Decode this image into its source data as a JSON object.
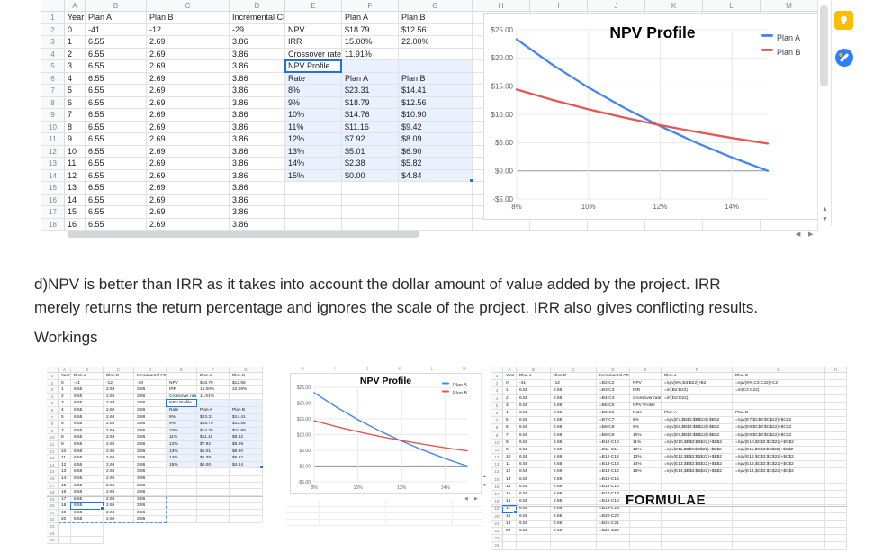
{
  "colors": {
    "plan_a": "#4285f4",
    "plan_b": "#e65550",
    "selection_fill": "#e8f0fd",
    "selection_border": "#1a73e8",
    "grid_line": "#e2e2e2",
    "header_bg": "#f8f9fa",
    "keep_icon_bg": "#fbbc04",
    "tasks_icon_bg": "#2d7ff9"
  },
  "top_sheet": {
    "col_letters": [
      "A",
      "B",
      "C",
      "D",
      "E",
      "F",
      "G",
      "H",
      "I",
      "J",
      "K",
      "L",
      "M"
    ],
    "selection_range": "E5:G14",
    "active_cell": "E5",
    "rows": [
      [
        "Year",
        "Plan A",
        "Plan B",
        "Incremental CF",
        "",
        "Plan A",
        "Plan B"
      ],
      [
        "0",
        "-41",
        "-12",
        "-29",
        "NPV",
        "$18.79",
        "$12.56"
      ],
      [
        "1",
        "6.55",
        "2.69",
        "3.86",
        "IRR",
        "15.00%",
        "22.00%"
      ],
      [
        "2",
        "6.55",
        "2.69",
        "3.86",
        "Crossover rate",
        "11.91%",
        ""
      ],
      [
        "3",
        "6.55",
        "2.69",
        "3.86",
        "NPV Profile",
        "",
        ""
      ],
      [
        "4",
        "6.55",
        "2.69",
        "3.86",
        "Rate",
        "Plan A",
        "Plan B"
      ],
      [
        "5",
        "6.55",
        "2.69",
        "3.86",
        "8%",
        "$23.31",
        "$14.41"
      ],
      [
        "6",
        "6.55",
        "2.69",
        "3.86",
        "9%",
        "$18.79",
        "$12.56"
      ],
      [
        "7",
        "6.55",
        "2.69",
        "3.86",
        "10%",
        "$14.76",
        "$10.90"
      ],
      [
        "8",
        "6.55",
        "2.69",
        "3.86",
        "11%",
        "$11.16",
        "$9.42"
      ],
      [
        "9",
        "6.55",
        "2.69",
        "3.86",
        "12%",
        "$7.92",
        "$8.09"
      ],
      [
        "10",
        "6.55",
        "2.69",
        "3.86",
        "13%",
        "$5.01",
        "$6.90"
      ],
      [
        "11",
        "6.55",
        "2.69",
        "3.86",
        "14%",
        "$2.38",
        "$5.82"
      ],
      [
        "12",
        "6.55",
        "2.69",
        "3.86",
        "15%",
        "$0.00",
        "$4.84"
      ],
      [
        "13",
        "6.55",
        "2.69",
        "3.86",
        "",
        "",
        ""
      ],
      [
        "14",
        "6.55",
        "2.69",
        "3.86",
        "",
        "",
        ""
      ],
      [
        "15",
        "6.55",
        "2.69",
        "3.86",
        "",
        "",
        ""
      ],
      [
        "16",
        "6.55",
        "2.69",
        "3.86",
        "",
        "",
        ""
      ]
    ]
  },
  "chart_data": {
    "type": "line",
    "title": "NPV Profile",
    "x": [
      8,
      9,
      10,
      11,
      12,
      13,
      14,
      15
    ],
    "xlim": [
      8,
      15
    ],
    "ylim": [
      -5,
      25
    ],
    "x_ticks": [
      8,
      10,
      12,
      14
    ],
    "x_tick_labels": [
      "8%",
      "10%",
      "12%",
      "14%"
    ],
    "y_ticks": [
      25,
      20,
      15,
      10,
      5,
      0,
      -5
    ],
    "y_tick_labels": [
      "$25.00",
      "$20.00",
      "$15.00",
      "$10.00",
      "$5.00",
      "$0.00",
      "-$5.00"
    ],
    "grid": true,
    "legend_position": "top-right",
    "series": [
      {
        "name": "Plan A",
        "color": "#4285f4",
        "values": [
          23.31,
          18.79,
          14.76,
          11.16,
          7.92,
          5.01,
          2.38,
          0.0
        ]
      },
      {
        "name": "Plan B",
        "color": "#e65550",
        "values": [
          14.41,
          12.56,
          10.9,
          9.42,
          8.09,
          6.9,
          5.82,
          4.84
        ]
      }
    ]
  },
  "document": {
    "answer_line1": "d)NPV is better than IRR as it takes into account the dollar amount of value added by the project. IRR",
    "answer_line2": "merely returns the return percentage and ignores the scale of the project. IRR also gives conflicting results.",
    "workings": "Workings",
    "formulae": "FORMULAE"
  },
  "mini_left_sheet": {
    "col_letters": [
      "A",
      "B",
      "C",
      "D",
      "E",
      "F",
      "G"
    ],
    "selection_range": "E5:G14",
    "active_cells": [
      "E5",
      "B20"
    ],
    "dashed_range": "A19:D22",
    "extra_rows": [
      [
        "17",
        "6.55",
        "2.69",
        "3.86",
        "",
        "",
        ""
      ],
      [
        "18",
        "6.55",
        "2.69",
        "3.86",
        "",
        "",
        ""
      ],
      [
        "19",
        "6.55",
        "2.69",
        "3.86",
        "",
        "",
        ""
      ],
      [
        "20",
        "6.55",
        "2.69",
        "3.86",
        "",
        "",
        ""
      ],
      [
        "",
        "",
        "",
        "",
        "",
        "",
        ""
      ],
      [
        "",
        "",
        "",
        "",
        "",
        "",
        ""
      ],
      [
        "",
        "",
        "",
        "",
        "",
        "",
        ""
      ]
    ]
  },
  "mini_right_sheet": {
    "col_letters": [
      "A",
      "B",
      "C",
      "D",
      "E",
      "F",
      "G",
      "H"
    ],
    "active_cell": "A19",
    "rows": [
      [
        "Year",
        "Plan A",
        "Plan B",
        "Incremental CF",
        "",
        "Plan A",
        "Plan B"
      ],
      [
        "0",
        "-41",
        "-12",
        "=B2-C2",
        "NPV",
        "=npv(9%,B3:B22)+B2",
        "=npv(9%,C3:C22)+C2"
      ],
      [
        "1",
        "6.55",
        "2.69",
        "=B3-C3",
        "IRR",
        "=irr(B2:B22)",
        "=irr(C2:C22)"
      ],
      [
        "2",
        "6.55",
        "2.69",
        "=B4-C4",
        "Crossover rate",
        "=irr(D2:D22)",
        ""
      ],
      [
        "3",
        "6.55",
        "2.69",
        "=B5-C5",
        "NPV Profile",
        "",
        ""
      ],
      [
        "4",
        "6.55",
        "2.69",
        "=B6-C6",
        "Rate",
        "Plan A",
        "Plan B"
      ],
      [
        "5",
        "6.55",
        "2.69",
        "=B7-C7",
        "8%",
        "=npv(E7,$B$3:$B$22)+$B$2",
        "=npv(E7,$C$3:$C$22)+$C$2"
      ],
      [
        "6",
        "6.55",
        "2.69",
        "=B8-C8",
        "9%",
        "=npv(E8,$B$3:$B$22)+$B$2",
        "=npv(E8,$C$3:$C$22)+$C$2"
      ],
      [
        "7",
        "6.55",
        "2.69",
        "=B9-C9",
        "10%",
        "=npv(E9,$B$3:$B$22)+$B$2",
        "=npv(E9,$C$3:$C$22)+$C$2"
      ],
      [
        "8",
        "6.55",
        "2.69",
        "=B10-C10",
        "11%",
        "=npv(E10,$B$3:$B$22)+$B$2",
        "=npv(E10,$C$3:$C$22)+$C$2"
      ],
      [
        "9",
        "6.55",
        "2.69",
        "=B11-C11",
        "12%",
        "=npv(E11,$B$3:$B$22)+$B$2",
        "=npv(E11,$C$3:$C$22)+$C$2"
      ],
      [
        "10",
        "6.55",
        "2.69",
        "=B12-C12",
        "13%",
        "=npv(E12,$B$3:$B$22)+$B$2",
        "=npv(E12,$C$3:$C$22)+$C$2"
      ],
      [
        "11",
        "6.55",
        "2.69",
        "=B13-C13",
        "14%",
        "=npv(E13,$B$3:$B$22)+$B$2",
        "=npv(E13,$C$3:$C$22)+$C$2"
      ],
      [
        "12",
        "6.55",
        "2.69",
        "=B14-C14",
        "15%",
        "=npv(E14,$B$3:$B$22)+$B$2",
        "=npv(E14,$C$3:$C$22)+$C$2"
      ],
      [
        "13",
        "6.55",
        "2.69",
        "=B15-C15",
        "",
        "",
        ""
      ],
      [
        "14",
        "6.55",
        "2.69",
        "=B16-C16",
        "",
        "",
        ""
      ],
      [
        "15",
        "6.55",
        "2.69",
        "=B17-C17",
        "",
        "",
        ""
      ],
      [
        "16",
        "6.55",
        "2.69",
        "=B18-C18",
        "",
        "",
        ""
      ],
      [
        "17",
        "6.55",
        "2.69",
        "=B19-C19",
        "",
        "",
        ""
      ],
      [
        "18",
        "6.55",
        "2.69",
        "=B20-C20",
        "",
        "",
        ""
      ],
      [
        "19",
        "6.55",
        "2.69",
        "=B21-C21",
        "",
        "",
        ""
      ],
      [
        "20",
        "6.55",
        "2.69",
        "=B22-C22",
        "",
        "",
        ""
      ],
      [
        "",
        "",
        "",
        "",
        "",
        "",
        ""
      ],
      [
        "",
        "",
        "",
        "",
        "",
        "",
        ""
      ]
    ]
  },
  "side_icons": [
    {
      "name": "keep",
      "color": "#fbbc04"
    },
    {
      "name": "tasks",
      "color": "#2d7ff9"
    }
  ]
}
